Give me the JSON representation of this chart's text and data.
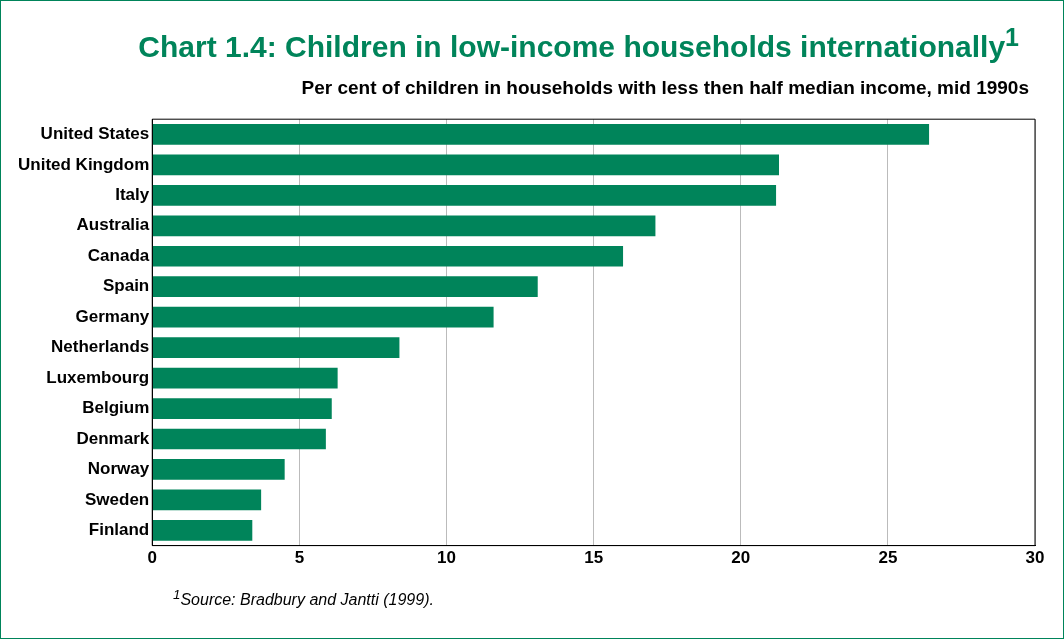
{
  "chart_data": {
    "type": "bar",
    "orientation": "horizontal",
    "title": "Chart 1.4: Children in low-income households internationally$^{1}$",
    "subtitle": "Per cent of children in households with less then half median income, mid 1990s",
    "categories": [
      "United States",
      "United Kingdom",
      "Italy",
      "Australia",
      "Canada",
      "Spain",
      "Germany",
      "Netherlands",
      "Luxembourg",
      "Belgium",
      "Denmark",
      "Norway",
      "Sweden",
      "Finland"
    ],
    "values": [
      26.4,
      21.3,
      21.2,
      17.1,
      16.0,
      13.1,
      11.6,
      8.4,
      6.3,
      6.1,
      5.9,
      4.5,
      3.7,
      3.4
    ],
    "color": "#00845a",
    "xlim": [
      0,
      30
    ],
    "xticks": [
      0,
      5,
      10,
      15,
      20,
      25,
      30
    ],
    "grid": "x",
    "legend": false,
    "annotations": [
      "$^{1}$Source: Bradbury and Jantti (1999)."
    ]
  }
}
